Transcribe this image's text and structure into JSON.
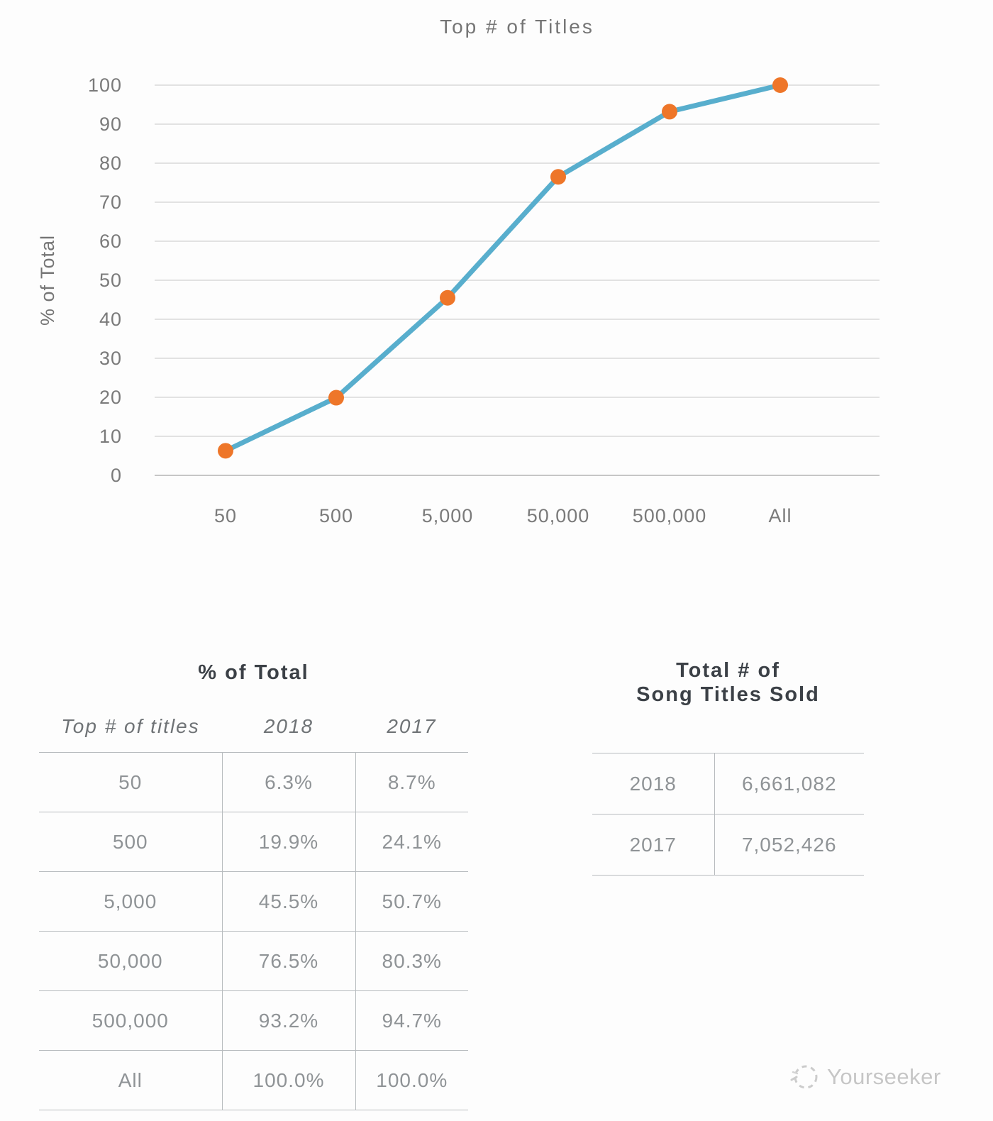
{
  "chart": {
    "title": "Top # of Titles",
    "y_axis_label": "% of Total"
  },
  "chart_data": {
    "type": "line",
    "title": "Top # of Titles",
    "xlabel": "",
    "ylabel": "% of Total",
    "categories": [
      "50",
      "500",
      "5,000",
      "50,000",
      "500,000",
      "All"
    ],
    "series": [
      {
        "name": "2018",
        "values": [
          6.3,
          19.9,
          45.5,
          76.5,
          93.2,
          100.0
        ]
      }
    ],
    "ylim": [
      0,
      100
    ],
    "ytick_step": 10,
    "grid": true,
    "legend": "none",
    "line_color": "#58aecd",
    "marker_color": "#ee7629",
    "gridline_color": "#dadada",
    "axis_text_color": "#7a7a7a"
  },
  "tables": {
    "percent_table": {
      "title": "% of Total",
      "columns": [
        "Top # of titles",
        "2018",
        "2017"
      ],
      "rows": [
        {
          "titles": "50",
          "y2018": "6.3%",
          "y2017": "8.7%"
        },
        {
          "titles": "500",
          "y2018": "19.9%",
          "y2017": "24.1%"
        },
        {
          "titles": "5,000",
          "y2018": "45.5%",
          "y2017": "50.7%"
        },
        {
          "titles": "50,000",
          "y2018": "76.5%",
          "y2017": "80.3%"
        },
        {
          "titles": "500,000",
          "y2018": "93.2%",
          "y2017": "94.7%"
        },
        {
          "titles": "All",
          "y2018": "100.0%",
          "y2017": "100.0%"
        }
      ]
    },
    "totals_table": {
      "title_line1": "Total # of",
      "title_line2": "Song Titles Sold",
      "rows": [
        {
          "year": "2018",
          "value": "6,661,082"
        },
        {
          "year": "2017",
          "value": "7,052,426"
        }
      ]
    }
  },
  "watermark": {
    "label": "Yourseeker"
  },
  "colors": {
    "title_text": "#3b4046",
    "muted_text": "#8f9396",
    "table_line": "#b7bbbe",
    "watermark_text": "#c6c6c6"
  }
}
